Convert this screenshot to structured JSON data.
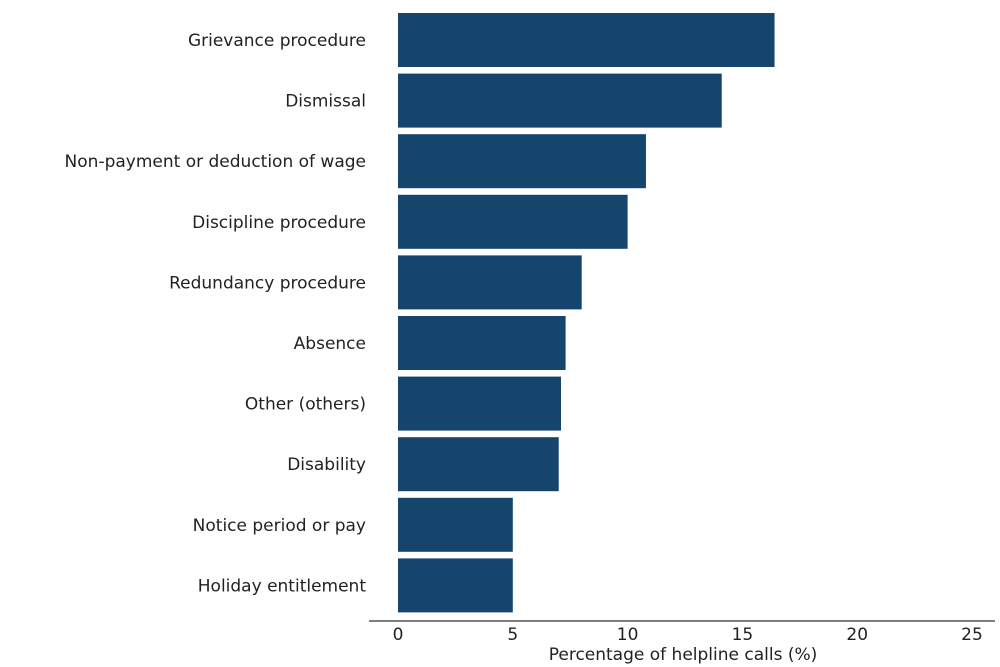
{
  "chart_data": {
    "type": "bar",
    "orientation": "horizontal",
    "categories": [
      "Grievance procedure",
      "Dismissal",
      "Non-payment or deduction of wage",
      "Discipline procedure",
      "Redundancy procedure",
      "Absence",
      "Other (others)",
      "Disability",
      "Notice period or pay",
      "Holiday entitlement"
    ],
    "values": [
      16.4,
      14.1,
      10.8,
      10.0,
      8.0,
      7.3,
      7.1,
      7.0,
      5.0,
      5.0
    ],
    "title": "",
    "xlabel": "Percentage of helpline calls (%)",
    "ylabel": "",
    "xlim": [
      0,
      25
    ],
    "xticks": [
      "0",
      "5",
      "10",
      "15",
      "20",
      "25"
    ],
    "grid": false,
    "bar_color": "#15446c"
  }
}
